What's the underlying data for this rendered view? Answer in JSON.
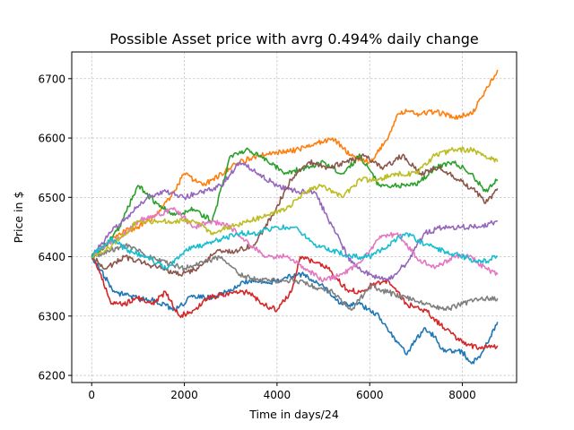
{
  "chart_data": {
    "type": "line",
    "title": "Possible Asset price with avrg 0.494% daily change",
    "xlabel": "Time in days/24",
    "ylabel": "Price in $",
    "xlim": [
      -430,
      9170
    ],
    "ylim": [
      6188,
      6745
    ],
    "x_ticks": [
      0,
      2000,
      4000,
      6000,
      8000
    ],
    "y_ticks": [
      6200,
      6300,
      6400,
      6500,
      6600,
      6700
    ],
    "x_tick_labels": [
      "0",
      "2000",
      "4000",
      "6000",
      "8000"
    ],
    "y_tick_labels": [
      "6200",
      "6300",
      "6400",
      "6500",
      "6600",
      "6700"
    ],
    "grid": true,
    "legend": "none",
    "series": [
      {
        "color": "#1f77b4",
        "x": [
          0,
          500,
          1000,
          1400,
          1800,
          2200,
          2600,
          3000,
          3400,
          3800,
          4200,
          4600,
          5000,
          5400,
          5800,
          6200,
          6600,
          6800,
          7000,
          7200,
          7400,
          7600,
          8000,
          8200,
          8400,
          8760
        ],
        "y": [
          6400,
          6340,
          6330,
          6325,
          6310,
          6335,
          6330,
          6345,
          6360,
          6355,
          6365,
          6370,
          6350,
          6320,
          6320,
          6300,
          6255,
          6235,
          6260,
          6280,
          6265,
          6240,
          6240,
          6220,
          6235,
          6290
        ]
      },
      {
        "color": "#ff7f0e",
        "x": [
          0,
          300,
          600,
          1000,
          1400,
          1700,
          2000,
          2400,
          2800,
          3200,
          3600,
          4000,
          4400,
          4800,
          5200,
          5600,
          6000,
          6400,
          6600,
          6800,
          7000,
          7400,
          7800,
          8200,
          8500,
          8760
        ],
        "y": [
          6400,
          6420,
          6440,
          6450,
          6470,
          6500,
          6540,
          6520,
          6540,
          6560,
          6570,
          6575,
          6580,
          6590,
          6600,
          6570,
          6560,
          6600,
          6640,
          6645,
          6640,
          6645,
          6635,
          6640,
          6680,
          6715
        ]
      },
      {
        "color": "#2ca02c",
        "x": [
          0,
          300,
          600,
          1000,
          1400,
          1800,
          2200,
          2600,
          3000,
          3400,
          3800,
          4200,
          4600,
          5000,
          5400,
          5800,
          6200,
          6600,
          7000,
          7400,
          7800,
          8200,
          8500,
          8760
        ],
        "y": [
          6400,
          6420,
          6450,
          6520,
          6490,
          6470,
          6480,
          6460,
          6570,
          6580,
          6560,
          6540,
          6550,
          6560,
          6540,
          6570,
          6520,
          6520,
          6520,
          6550,
          6560,
          6540,
          6510,
          6530
        ]
      },
      {
        "color": "#d62728",
        "x": [
          0,
          200,
          400,
          700,
          1000,
          1300,
          1600,
          1900,
          2200,
          2500,
          2800,
          3100,
          3400,
          3700,
          4000,
          4300,
          4500,
          4800,
          5100,
          5500,
          5800,
          6000,
          6400,
          6800,
          7200,
          7600,
          8000,
          8400,
          8760
        ],
        "y": [
          6400,
          6370,
          6325,
          6320,
          6330,
          6320,
          6340,
          6300,
          6310,
          6330,
          6335,
          6340,
          6340,
          6320,
          6310,
          6340,
          6400,
          6390,
          6380,
          6345,
          6340,
          6350,
          6360,
          6320,
          6310,
          6280,
          6255,
          6245,
          6250
        ]
      },
      {
        "color": "#9467bd",
        "x": [
          0,
          400,
          800,
          1200,
          1600,
          2000,
          2400,
          2800,
          3200,
          3600,
          4000,
          4400,
          4800,
          5200,
          5600,
          6000,
          6400,
          6800,
          7200,
          7600,
          8000,
          8400,
          8760
        ],
        "y": [
          6400,
          6440,
          6470,
          6500,
          6510,
          6500,
          6510,
          6520,
          6560,
          6540,
          6520,
          6510,
          6510,
          6450,
          6390,
          6370,
          6360,
          6390,
          6440,
          6450,
          6450,
          6450,
          6460
        ]
      },
      {
        "color": "#8c564b",
        "x": [
          0,
          300,
          700,
          1100,
          1500,
          1900,
          2300,
          2700,
          3100,
          3500,
          3900,
          4300,
          4700,
          5100,
          5500,
          5900,
          6300,
          6700,
          7100,
          7500,
          7900,
          8300,
          8500,
          8760
        ],
        "y": [
          6400,
          6380,
          6400,
          6390,
          6380,
          6370,
          6380,
          6410,
          6410,
          6420,
          6470,
          6530,
          6560,
          6550,
          6560,
          6570,
          6550,
          6570,
          6540,
          6550,
          6530,
          6510,
          6490,
          6515
        ]
      },
      {
        "color": "#e377c2",
        "x": [
          0,
          300,
          600,
          1000,
          1400,
          1800,
          2200,
          2600,
          3000,
          3400,
          3800,
          4200,
          4600,
          5000,
          5400,
          5800,
          6200,
          6600,
          7000,
          7400,
          7800,
          8200,
          8500,
          8760
        ],
        "y": [
          6400,
          6420,
          6430,
          6460,
          6470,
          6480,
          6450,
          6460,
          6450,
          6420,
          6400,
          6400,
          6380,
          6360,
          6370,
          6390,
          6430,
          6440,
          6400,
          6380,
          6400,
          6400,
          6380,
          6370
        ]
      },
      {
        "color": "#7f7f7f",
        "x": [
          0,
          400,
          800,
          1200,
          1600,
          2000,
          2400,
          2800,
          3200,
          3600,
          4000,
          4400,
          4800,
          5200,
          5600,
          6000,
          6400,
          6800,
          7200,
          7600,
          8000,
          8400,
          8760
        ],
        "y": [
          6400,
          6410,
          6420,
          6400,
          6390,
          6380,
          6390,
          6400,
          6370,
          6360,
          6360,
          6360,
          6350,
          6340,
          6310,
          6350,
          6340,
          6330,
          6320,
          6310,
          6320,
          6330,
          6330
        ]
      },
      {
        "color": "#bcbd22",
        "x": [
          0,
          300,
          600,
          1000,
          1400,
          1800,
          2200,
          2600,
          3000,
          3400,
          3800,
          4200,
          4600,
          5000,
          5400,
          5800,
          6200,
          6600,
          7000,
          7400,
          7800,
          8200,
          8500,
          8760
        ],
        "y": [
          6400,
          6410,
          6430,
          6460,
          6460,
          6460,
          6460,
          6440,
          6450,
          6460,
          6470,
          6480,
          6510,
          6520,
          6500,
          6530,
          6530,
          6540,
          6540,
          6570,
          6580,
          6580,
          6570,
          6560
        ]
      },
      {
        "color": "#17becf",
        "x": [
          0,
          400,
          800,
          1200,
          1600,
          2000,
          2400,
          2800,
          3200,
          3600,
          4000,
          4400,
          4800,
          5200,
          5600,
          6000,
          6400,
          6800,
          7200,
          7600,
          8000,
          8400,
          8760
        ],
        "y": [
          6400,
          6430,
          6410,
          6400,
          6380,
          6410,
          6420,
          6430,
          6440,
          6440,
          6450,
          6450,
          6420,
          6410,
          6400,
          6400,
          6420,
          6440,
          6420,
          6410,
          6400,
          6390,
          6400
        ]
      }
    ]
  }
}
